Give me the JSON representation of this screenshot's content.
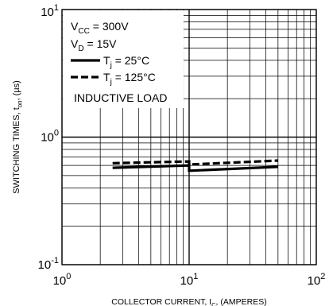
{
  "chart_data": {
    "type": "line",
    "scale": {
      "x": "log",
      "y": "log"
    },
    "xlim": [
      1,
      100
    ],
    "ylim": [
      0.1,
      10
    ],
    "grid": true,
    "xlabel": {
      "main": "COLLECTOR CURRENT, I",
      "sub": "C",
      "tail": ", (AMPERES)"
    },
    "ylabel": {
      "main": "SWITCHING TIMES, t",
      "sub": "on",
      "tail": ", (µs)"
    },
    "x_ticks": [
      {
        "base": "10",
        "exp": "0",
        "value": 1
      },
      {
        "base": "10",
        "exp": "1",
        "value": 10
      },
      {
        "base": "10",
        "exp": "2",
        "value": 100
      }
    ],
    "y_ticks": [
      {
        "base": "10",
        "exp": "-1",
        "value": 0.1
      },
      {
        "base": "10",
        "exp": "0",
        "value": 1
      },
      {
        "base": "10",
        "exp": "1",
        "value": 10
      }
    ],
    "conditions": [
      {
        "main": "V",
        "sub": "CC",
        "tail": " = 300V"
      },
      {
        "main": "V",
        "sub": "D",
        "tail": " = 15V"
      }
    ],
    "legend_position": "top-left",
    "series": [
      {
        "name": {
          "main": "T",
          "sub": "j",
          "tail": " = 25°C"
        },
        "style": "solid",
        "points": [
          [
            2.5,
            0.575
          ],
          [
            10,
            0.6
          ],
          [
            10,
            0.545
          ],
          [
            50,
            0.585
          ]
        ]
      },
      {
        "name": {
          "main": "T",
          "sub": "j",
          "tail": " = 125°C"
        },
        "style": "dashed",
        "points": [
          [
            2.5,
            0.625
          ],
          [
            10,
            0.645
          ],
          [
            10,
            0.61
          ],
          [
            50,
            0.655
          ]
        ]
      }
    ],
    "annotation": "INDUCTIVE LOAD"
  }
}
